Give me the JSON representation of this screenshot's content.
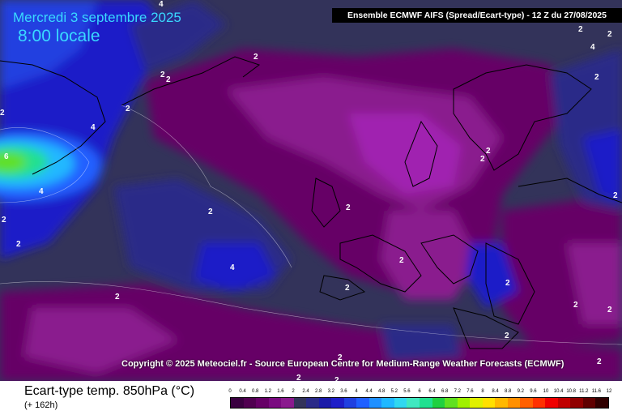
{
  "header": {
    "date": "Mercredi 3 septembre 2025",
    "time": "8:00 locale",
    "source": "Ensemble ECMWF AIFS  (Spread/Ecart-type) - 12 Z du 27/08/2025"
  },
  "map": {
    "copyright": "Copyright © 2025 Meteociel.fr - Source European Centre for Medium-Range Weather Forecasts (ECMWF)",
    "contour_labels": [
      "4",
      "2",
      "2",
      "2",
      "2",
      "4",
      "2",
      "6",
      "4",
      "2",
      "2",
      "2",
      "4",
      "2",
      "2",
      "2",
      "2",
      "2",
      "2",
      "2",
      "2",
      "2",
      "2",
      "2",
      "2",
      "2",
      "2",
      "2",
      "2",
      "4",
      "2",
      "2"
    ]
  },
  "legend": {
    "variable": "Ecart-type temp. 850hPa (°C)",
    "lead_time": "(+ 162h)",
    "ticks": [
      "0",
      "0.4",
      "0.8",
      "1.2",
      "1.6",
      "2",
      "2.4",
      "2.8",
      "3.2",
      "3.6",
      "4",
      "4.4",
      "4.8",
      "5.2",
      "5.6",
      "6",
      "6.4",
      "6.8",
      "7.2",
      "7.6",
      "8",
      "8.4",
      "8.8",
      "9.2",
      "9.6",
      "10",
      "10.4",
      "10.8",
      "11.2",
      "11.6",
      "12"
    ],
    "colors": [
      "#3a0040",
      "#500050",
      "#660066",
      "#7a0a80",
      "#8a1a8e",
      "#33335a",
      "#2a2a88",
      "#1a1aa8",
      "#1e1ec8",
      "#2040e0",
      "#2060ff",
      "#2090ff",
      "#20b8ff",
      "#30d8f0",
      "#40e8c0",
      "#20e090",
      "#20d040",
      "#60e020",
      "#a0f000",
      "#e0f000",
      "#ffe000",
      "#ffb800",
      "#ff9000",
      "#ff6000",
      "#ff3000",
      "#f00000",
      "#c00000",
      "#900000",
      "#600000",
      "#300000"
    ]
  }
}
